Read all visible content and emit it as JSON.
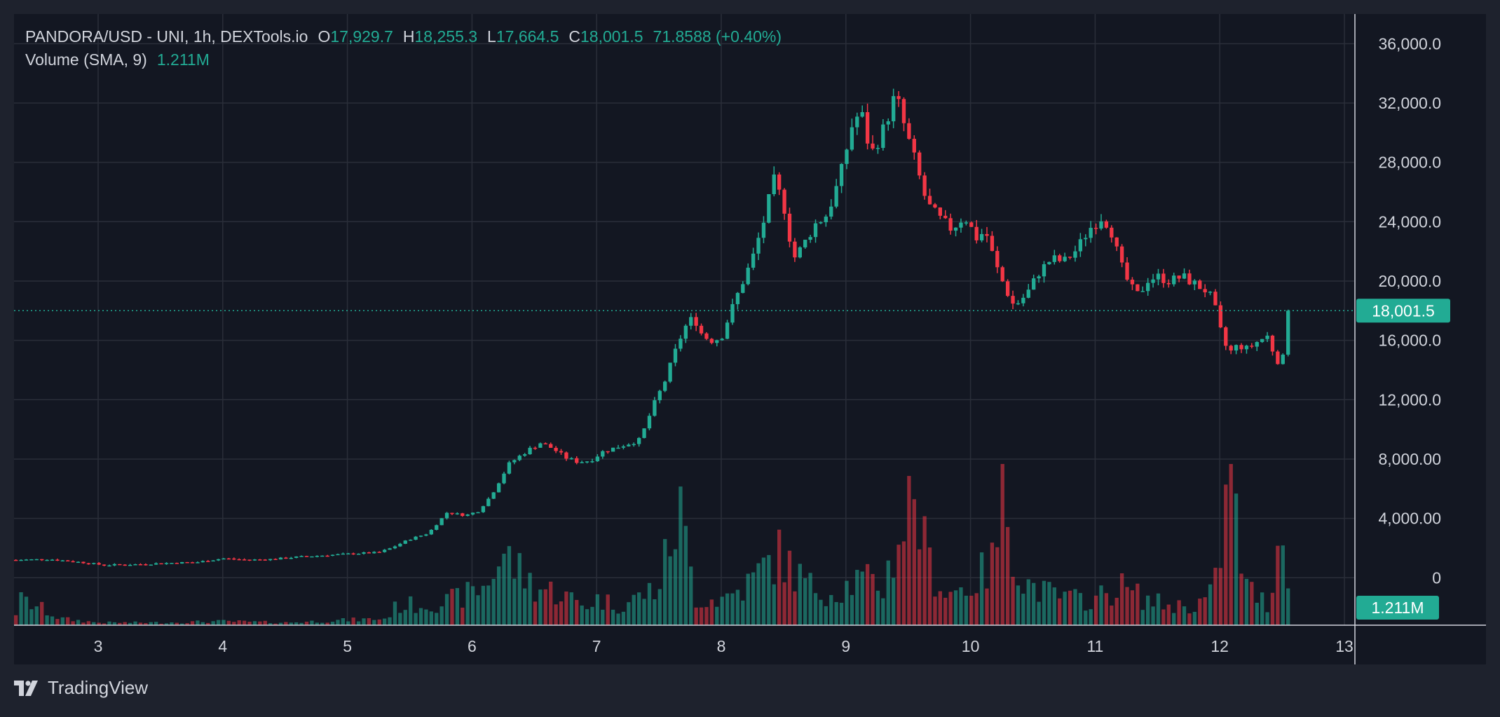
{
  "legend": {
    "title": "PANDORA/USD - UNI, 1h, DEXTools.io",
    "o_label": "O",
    "o_value": "17,929.7",
    "h_label": "H",
    "h_value": "18,255.3",
    "l_label": "L",
    "l_value": "17,664.5",
    "c_label": "C",
    "c_value": "18,001.5",
    "change": "71.8588 (+0.40%)",
    "volume_label": "Volume (SMA, 9)",
    "volume_value": "1.211M"
  },
  "branding": {
    "name": "TradingView",
    "icon": "tradingview-logo-icon"
  },
  "colors": {
    "up": "#22ab94",
    "down": "#f23645",
    "background": "#131722",
    "frame": "#1e222d",
    "grid": "#2a2e39",
    "text": "#d1d4dc",
    "price_badge": "#22ab94"
  },
  "chart_data": {
    "type": "candlestick",
    "title": "PANDORA/USD - UNI, 1h, DEXTools.io",
    "x_ticks": [
      "3",
      "4",
      "5",
      "6",
      "7",
      "8",
      "9",
      "10",
      "11",
      "12",
      "13"
    ],
    "x_start_day": 2.34,
    "y_ticks": [
      "36,000.0",
      "32,000.0",
      "28,000.0",
      "24,000.0",
      "20,000.0",
      "16,000.0",
      "12,000.0",
      "8,000.00",
      "4,000.00",
      "0"
    ],
    "ylim": [
      -3200,
      38000
    ],
    "last_price": 18001.5,
    "last_price_label": "18,001.5",
    "volume_label": "1.211M",
    "grid": true,
    "series": [
      {
        "name": "price",
        "points": [
          [
            2.34,
            1200
          ],
          [
            2.6,
            1250
          ],
          [
            2.8,
            1100
          ],
          [
            3.05,
            850
          ],
          [
            3.3,
            900
          ],
          [
            3.6,
            1000
          ],
          [
            3.8,
            1050
          ],
          [
            4.0,
            1300
          ],
          [
            4.2,
            1200
          ],
          [
            4.4,
            1250
          ],
          [
            4.6,
            1400
          ],
          [
            4.8,
            1500
          ],
          [
            5.0,
            1600
          ],
          [
            5.1,
            1650
          ],
          [
            5.25,
            1700
          ],
          [
            5.35,
            2000
          ],
          [
            5.5,
            2600
          ],
          [
            5.65,
            3000
          ],
          [
            5.8,
            4400
          ],
          [
            5.95,
            4200
          ],
          [
            6.05,
            4500
          ],
          [
            6.15,
            5500
          ],
          [
            6.3,
            7700
          ],
          [
            6.45,
            8600
          ],
          [
            6.55,
            9100
          ],
          [
            6.65,
            8700
          ],
          [
            6.75,
            8100
          ],
          [
            6.85,
            7800
          ],
          [
            6.95,
            7900
          ],
          [
            7.05,
            8500
          ],
          [
            7.2,
            8900
          ],
          [
            7.35,
            9300
          ],
          [
            7.45,
            11500
          ],
          [
            7.55,
            13300
          ],
          [
            7.62,
            15000
          ],
          [
            7.7,
            16800
          ],
          [
            7.78,
            17600
          ],
          [
            7.85,
            16300
          ],
          [
            7.93,
            16000
          ],
          [
            8.0,
            16200
          ],
          [
            8.07,
            17800
          ],
          [
            8.15,
            19500
          ],
          [
            8.25,
            21500
          ],
          [
            8.35,
            24300
          ],
          [
            8.42,
            26800
          ],
          [
            8.5,
            25200
          ],
          [
            8.58,
            21500
          ],
          [
            8.65,
            22300
          ],
          [
            8.75,
            23800
          ],
          [
            8.85,
            24500
          ],
          [
            8.95,
            26900
          ],
          [
            9.05,
            30500
          ],
          [
            9.12,
            31500
          ],
          [
            9.2,
            28500
          ],
          [
            9.3,
            30200
          ],
          [
            9.4,
            32600
          ],
          [
            9.48,
            30100
          ],
          [
            9.55,
            28200
          ],
          [
            9.65,
            25200
          ],
          [
            9.75,
            24200
          ],
          [
            9.85,
            23500
          ],
          [
            9.95,
            24400
          ],
          [
            10.05,
            22900
          ],
          [
            10.12,
            23400
          ],
          [
            10.2,
            21100
          ],
          [
            10.28,
            19500
          ],
          [
            10.35,
            18300
          ],
          [
            10.45,
            19100
          ],
          [
            10.55,
            20600
          ],
          [
            10.65,
            21500
          ],
          [
            10.75,
            21300
          ],
          [
            10.85,
            22100
          ],
          [
            10.95,
            23500
          ],
          [
            11.05,
            24300
          ],
          [
            11.12,
            23700
          ],
          [
            11.2,
            21200
          ],
          [
            11.28,
            19600
          ],
          [
            11.35,
            19000
          ],
          [
            11.42,
            20100
          ],
          [
            11.5,
            20300
          ],
          [
            11.6,
            20000
          ],
          [
            11.7,
            20300
          ],
          [
            11.8,
            19800
          ],
          [
            11.9,
            19300
          ],
          [
            11.95,
            18600
          ],
          [
            12.0,
            16800
          ],
          [
            12.07,
            15100
          ],
          [
            12.15,
            15700
          ],
          [
            12.22,
            15400
          ],
          [
            12.3,
            15900
          ],
          [
            12.38,
            16300
          ],
          [
            12.45,
            14800
          ],
          [
            12.5,
            14300
          ],
          [
            12.55,
            18001.5
          ]
        ]
      },
      {
        "name": "volume",
        "points": [
          [
            2.35,
            0.2
          ],
          [
            2.5,
            0.15
          ],
          [
            2.7,
            0.05
          ],
          [
            3.0,
            0.02
          ],
          [
            3.5,
            0.02
          ],
          [
            4.0,
            0.03
          ],
          [
            4.5,
            0.02
          ],
          [
            5.0,
            0.04
          ],
          [
            5.3,
            0.05
          ],
          [
            5.4,
            0.15
          ],
          [
            5.6,
            0.16
          ],
          [
            5.8,
            0.18
          ],
          [
            6.0,
            0.25
          ],
          [
            6.1,
            0.3
          ],
          [
            6.25,
            0.55
          ],
          [
            6.35,
            0.45
          ],
          [
            6.5,
            0.3
          ],
          [
            6.7,
            0.25
          ],
          [
            6.9,
            0.15
          ],
          [
            7.0,
            0.2
          ],
          [
            7.2,
            0.15
          ],
          [
            7.5,
            0.3
          ],
          [
            7.66,
            0.9
          ],
          [
            7.8,
            0.2
          ],
          [
            8.0,
            0.2
          ],
          [
            8.2,
            0.3
          ],
          [
            8.45,
            0.55
          ],
          [
            8.55,
            0.45
          ],
          [
            8.7,
            0.3
          ],
          [
            8.9,
            0.25
          ],
          [
            9.1,
            0.35
          ],
          [
            9.3,
            0.3
          ],
          [
            9.55,
            1.05
          ],
          [
            9.65,
            0.5
          ],
          [
            9.8,
            0.25
          ],
          [
            10.0,
            0.3
          ],
          [
            10.2,
            0.5
          ],
          [
            10.25,
            1.15
          ],
          [
            10.4,
            0.35
          ],
          [
            10.6,
            0.25
          ],
          [
            10.8,
            0.2
          ],
          [
            11.0,
            0.2
          ],
          [
            11.2,
            0.3
          ],
          [
            11.4,
            0.2
          ],
          [
            11.6,
            0.15
          ],
          [
            11.8,
            0.15
          ],
          [
            11.95,
            0.25
          ],
          [
            12.02,
            0.65
          ],
          [
            12.08,
            1.2
          ],
          [
            12.2,
            0.3
          ],
          [
            12.4,
            0.15
          ],
          [
            12.53,
            1.05
          ],
          [
            12.56,
            0.1
          ]
        ]
      }
    ]
  }
}
